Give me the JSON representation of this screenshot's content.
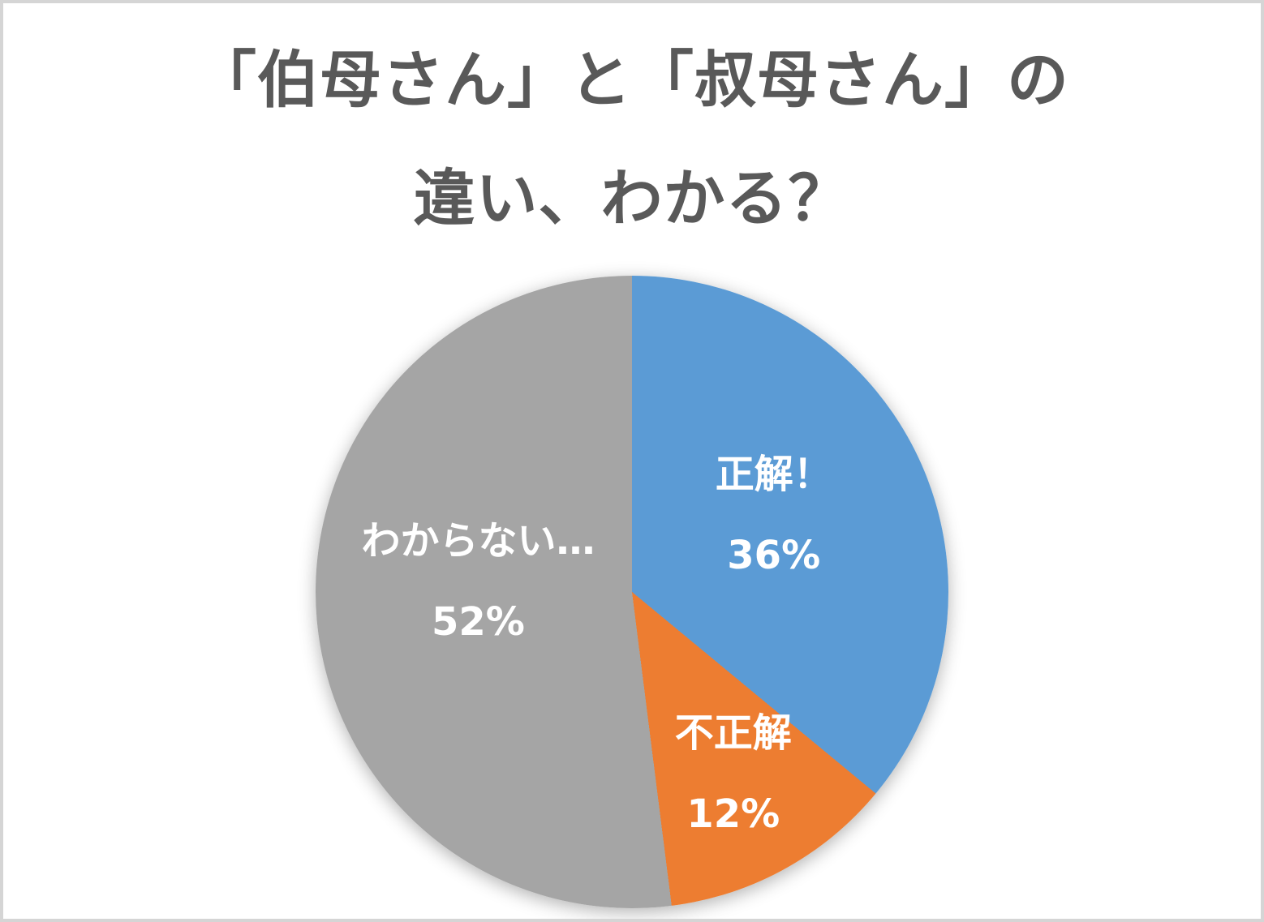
{
  "page": {
    "background_color": "#ffffff",
    "border_color": "#d5d5d5"
  },
  "title": {
    "line1": "「伯母さん」と「叔母さん」の",
    "line2": "違い、わかる？",
    "color": "#595959"
  },
  "chart_data": {
    "type": "pie",
    "title": "「伯母さん」と「叔母さん」の違い、わかる？",
    "start_angle_deg": 0,
    "direction": "clockwise",
    "total": 100,
    "legend": "none",
    "label_position": "inside",
    "label_color": "#ffffff",
    "slices": [
      {
        "label": "正解！",
        "value": 36,
        "display": "36%",
        "color": "#5B9BD5"
      },
      {
        "label": "不正解",
        "value": 12,
        "display": "12%",
        "color": "#ED7D31"
      },
      {
        "label": "わからない…",
        "value": 52,
        "display": "52%",
        "color": "#A5A5A5"
      }
    ]
  }
}
